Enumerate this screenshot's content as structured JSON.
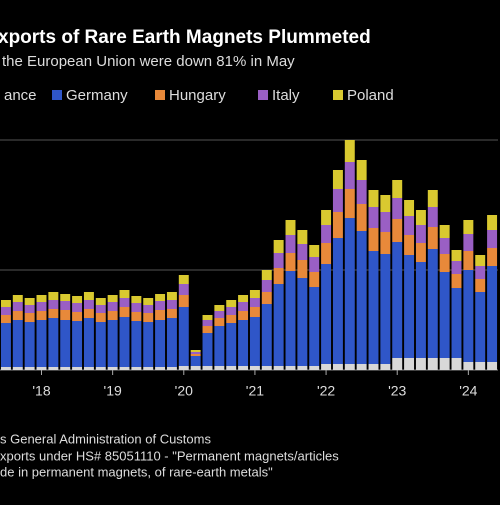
{
  "chart_data": {
    "type": "stacked-bar",
    "title": "xports of Rare Earth Magnets Plummeted",
    "subtitle": "the European Union were down 81% in May",
    "source": [
      "s General Administration of Customs",
      "xports under HS# 85051110 - \"Permanent magnets/articles",
      "de in permanent magnets, of rare-earth metals\""
    ],
    "categories": [
      null,
      null,
      null,
      "'18",
      null,
      null,
      null,
      null,
      null,
      "'19",
      null,
      null,
      null,
      null,
      null,
      "'20",
      null,
      null,
      null,
      null,
      null,
      "'21",
      null,
      null,
      null,
      null,
      null,
      "'22",
      null,
      null,
      null,
      null,
      null,
      "'23",
      null,
      null,
      null,
      null,
      null,
      "'24",
      null,
      null
    ],
    "series": [
      {
        "name": "ance",
        "color": "#d8d8d8",
        "values": [
          3,
          3,
          3,
          3,
          3,
          3,
          3,
          3,
          3,
          3,
          3,
          3,
          3,
          3,
          3,
          4,
          4,
          4,
          4,
          4,
          4,
          4,
          4,
          4,
          4,
          4,
          4,
          6,
          6,
          6,
          6,
          6,
          6,
          12,
          12,
          12,
          12,
          12,
          12,
          8,
          8,
          8
        ]
      },
      {
        "name": "Germany",
        "color": "#2f56c8",
        "values": [
          44,
          47,
          45,
          47,
          49,
          47,
          46,
          49,
          45,
          47,
          50,
          46,
          45,
          47,
          49,
          59,
          10,
          33,
          40,
          43,
          46,
          49,
          62,
          82,
          95,
          88,
          79,
          100,
          126,
          146,
          133,
          113,
          110,
          116,
          103,
          96,
          109,
          86,
          70,
          92,
          70,
          96
        ]
      },
      {
        "name": "Hungary",
        "color": "#e8893a",
        "values": [
          8,
          9,
          9,
          9,
          9,
          10,
          9,
          9,
          9,
          9,
          10,
          9,
          9,
          10,
          9,
          12,
          2,
          7,
          8,
          8,
          9,
          10,
          12,
          16,
          18,
          18,
          15,
          21,
          26,
          29,
          27,
          23,
          22,
          23,
          20,
          19,
          22,
          18,
          14,
          19,
          13,
          18
        ]
      },
      {
        "name": "Italy",
        "color": "#9a5fc4",
        "values": [
          8,
          9,
          8,
          9,
          9,
          9,
          9,
          9,
          8,
          9,
          9,
          9,
          8,
          9,
          9,
          11,
          2,
          6,
          7,
          8,
          9,
          9,
          12,
          15,
          18,
          16,
          15,
          18,
          23,
          27,
          24,
          21,
          20,
          21,
          19,
          18,
          20,
          16,
          13,
          17,
          13,
          18
        ]
      },
      {
        "name": "Poland",
        "color": "#d9c930",
        "values": [
          7,
          7,
          7,
          7,
          8,
          7,
          7,
          8,
          7,
          7,
          8,
          7,
          7,
          7,
          8,
          9,
          2,
          5,
          6,
          7,
          7,
          8,
          10,
          13,
          15,
          14,
          12,
          15,
          19,
          22,
          20,
          17,
          17,
          18,
          16,
          15,
          17,
          13,
          11,
          14,
          11,
          15
        ]
      }
    ],
    "ylim": [
      0,
      240
    ],
    "grid_lines": [
      100,
      230
    ],
    "grid": true
  }
}
